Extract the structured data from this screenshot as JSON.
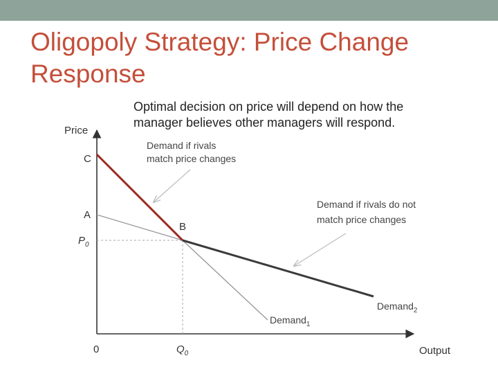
{
  "slide": {
    "title_line1": "Oligopoly Strategy: Price Change",
    "title_line2": "Response",
    "subtitle_line1": "Optimal decision on price will depend on how the",
    "subtitle_line2": "manager believes other managers will respond.",
    "band_color": "#8ea39a",
    "title_color": "#c44f3a"
  },
  "diagram": {
    "y_axis_label": "Price",
    "x_axis_label": "Output",
    "origin_label": "0",
    "point_c": "C",
    "point_a": "A",
    "point_b": "B",
    "p0_label": "P",
    "p0_sub": "0",
    "q0_label": "Q",
    "q0_sub": "0",
    "note_match_line1": "Demand if rivals",
    "note_match_line2": "match price changes",
    "note_nomatch_line1": "Demand if rivals do not",
    "note_nomatch_line2": "match price changes",
    "demand1_label": "Demand",
    "demand1_sub": "1",
    "demand2_label": "Demand",
    "demand2_sub": "2",
    "kinked_curve_color": "#9b2a22",
    "flat_curve_color": "#3a3a3a",
    "thin_curve_color": "#9a9a9a"
  }
}
